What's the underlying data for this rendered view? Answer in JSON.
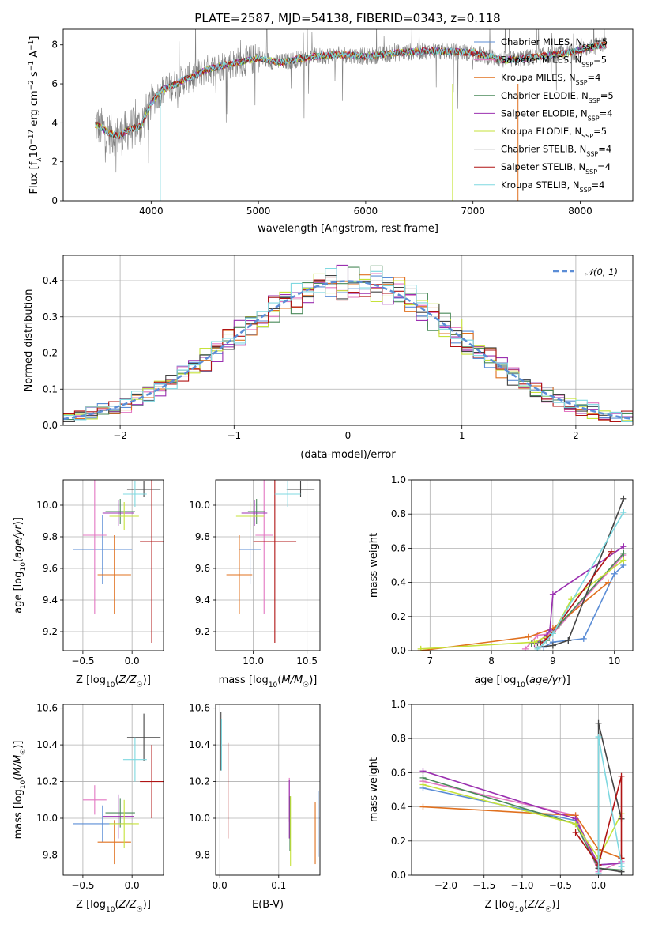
{
  "figure": {
    "title": "PLATE=2587, MJD=54138, FIBERID=0343, z=0.118"
  },
  "colors": {
    "chabrier_miles": "#5b8dd6",
    "salpeter_miles": "#e377c2",
    "kroupa_miles": "#e0701e",
    "chabrier_elodie": "#4a8a5a",
    "salpeter_elodie": "#9b30b0",
    "kroupa_elodie": "#c6e23a",
    "chabrier_stelib": "#444444",
    "salpeter_stelib": "#b01414",
    "kroupa_stelib": "#7fd8e0",
    "data_grey": "#808080",
    "normal_dashed": "#5b8dd6"
  },
  "chart_data": [
    {
      "id": "spectrum",
      "type": "line",
      "title": "PLATE=2587, MJD=54138, FIBERID=0343, z=0.118",
      "xlabel": "wavelength [Angstrom, rest frame]",
      "ylabel": "Flux [fλ10⁻¹⁷ erg cm⁻² s⁻¹ A⁻¹]",
      "xlim": [
        3180,
        8490
      ],
      "ylim": [
        0,
        8.8
      ],
      "xticks": [
        4000,
        5000,
        6000,
        7000,
        8000
      ],
      "yticks": [
        0,
        2,
        4,
        6,
        8
      ],
      "grid": false,
      "legend_position": "top-right",
      "legend": [
        {
          "label": "Chabrier MILES, N",
          "sub": "SSP",
          "suffix": "=5",
          "color_key": "chabrier_miles"
        },
        {
          "label": "Salpeter MILES, N",
          "sub": "SSP",
          "suffix": "=5",
          "color_key": "salpeter_miles"
        },
        {
          "label": "Kroupa MILES, N",
          "sub": "SSP",
          "suffix": "=4",
          "color_key": "kroupa_miles"
        },
        {
          "label": "Chabrier ELODIE, N",
          "sub": "SSP",
          "suffix": "=5",
          "color_key": "chabrier_elodie"
        },
        {
          "label": "Salpeter ELODIE, N",
          "sub": "SSP",
          "suffix": "=4",
          "color_key": "salpeter_elodie"
        },
        {
          "label": "Kroupa ELODIE, N",
          "sub": "SSP",
          "suffix": "=5",
          "color_key": "kroupa_elodie"
        },
        {
          "label": "Chabrier STELIB, N",
          "sub": "SSP",
          "suffix": "=4",
          "color_key": "chabrier_stelib"
        },
        {
          "label": "Salpeter STELIB, N",
          "sub": "SSP",
          "suffix": "=4",
          "color_key": "salpeter_stelib"
        },
        {
          "label": "Kroupa STELIB, N",
          "sub": "SSP",
          "suffix": "=4",
          "color_key": "kroupa_stelib"
        }
      ],
      "continuum": {
        "x": [
          3500,
          3600,
          3700,
          3800,
          3900,
          4000,
          4100,
          4200,
          4300,
          4400,
          4500,
          4700,
          5000,
          5200,
          5500,
          5800,
          6000,
          6300,
          6600,
          7000,
          7300,
          7600,
          7900,
          8200
        ],
        "y": [
          3.9,
          3.5,
          3.3,
          3.7,
          3.8,
          5.0,
          5.7,
          5.9,
          6.2,
          6.4,
          6.7,
          7.0,
          7.3,
          7.1,
          7.4,
          7.5,
          7.4,
          7.6,
          7.7,
          7.6,
          7.2,
          7.4,
          7.6,
          8.0
        ]
      }
    },
    {
      "id": "residuals",
      "type": "histogram",
      "xlabel": "(data-model)/error",
      "ylabel": "Normed distribution",
      "xlim": [
        -2.5,
        2.5
      ],
      "ylim": [
        0,
        0.47
      ],
      "xticks": [
        -2,
        -1,
        0,
        1,
        2
      ],
      "yticks": [
        0.0,
        0.1,
        0.2,
        0.3,
        0.4
      ],
      "grid": true,
      "legend_position": "top-right",
      "legend_label": "𝒩(0, 1)",
      "bin_width": 0.1
    },
    {
      "id": "age_vs_Z",
      "type": "scatter",
      "xlabel": "Z [log10(Z/Z☉)]",
      "ylabel": "age  [log10(age/yr)]",
      "xlim": [
        -0.7,
        0.32
      ],
      "ylim": [
        9.08,
        10.16
      ],
      "xticks": [
        -0.5,
        0.0
      ],
      "yticks": [
        9.2,
        9.4,
        9.6,
        9.8,
        10.0
      ],
      "grid": true,
      "points": [
        {
          "color_key": "chabrier_miles",
          "x": -0.3,
          "xerr": 0.3,
          "y": 9.72,
          "yerr": 0.22
        },
        {
          "color_key": "salpeter_miles",
          "x": -0.38,
          "xerr": 0.12,
          "y": 9.81,
          "yerr": 0.5
        },
        {
          "color_key": "kroupa_miles",
          "x": -0.18,
          "xerr": 0.17,
          "y": 9.56,
          "yerr": 0.25
        },
        {
          "color_key": "chabrier_elodie",
          "x": -0.12,
          "xerr": 0.15,
          "y": 9.96,
          "yerr": 0.08
        },
        {
          "color_key": "salpeter_elodie",
          "x": -0.14,
          "xerr": 0.16,
          "y": 9.95,
          "yerr": 0.08
        },
        {
          "color_key": "kroupa_elodie",
          "x": -0.08,
          "xerr": 0.15,
          "y": 9.93,
          "yerr": 0.09
        },
        {
          "color_key": "chabrier_stelib",
          "x": 0.12,
          "xerr": 0.17,
          "y": 10.1,
          "yerr": 0.05
        },
        {
          "color_key": "salpeter_stelib",
          "x": 0.2,
          "xerr": 0.12,
          "y": 9.77,
          "yerr": 0.64
        },
        {
          "color_key": "kroupa_stelib",
          "x": 0.03,
          "xerr": 0.12,
          "y": 10.07,
          "yerr": 0.08
        }
      ]
    },
    {
      "id": "age_vs_mass",
      "type": "scatter",
      "xlabel": "mass [log10(M/M☉)]",
      "ylabel": "",
      "xlim": [
        9.65,
        10.62
      ],
      "ylim": [
        9.08,
        10.16
      ],
      "xticks": [
        10.0,
        10.5
      ],
      "yticks": [
        9.2,
        9.4,
        9.6,
        9.8,
        10.0
      ],
      "grid": true,
      "points": [
        {
          "color_key": "chabrier_miles",
          "x": 9.97,
          "xerr": 0.1,
          "y": 9.72,
          "yerr": 0.22
        },
        {
          "color_key": "salpeter_miles",
          "x": 10.1,
          "xerr": 0.08,
          "y": 9.81,
          "yerr": 0.5
        },
        {
          "color_key": "kroupa_miles",
          "x": 9.87,
          "xerr": 0.12,
          "y": 9.56,
          "yerr": 0.25
        },
        {
          "color_key": "chabrier_elodie",
          "x": 10.03,
          "xerr": 0.08,
          "y": 9.96,
          "yerr": 0.08
        },
        {
          "color_key": "salpeter_elodie",
          "x": 10.01,
          "xerr": 0.12,
          "y": 9.95,
          "yerr": 0.08
        },
        {
          "color_key": "kroupa_elodie",
          "x": 9.97,
          "xerr": 0.13,
          "y": 9.93,
          "yerr": 0.09
        },
        {
          "color_key": "chabrier_stelib",
          "x": 10.44,
          "xerr": 0.13,
          "y": 10.1,
          "yerr": 0.05
        },
        {
          "color_key": "salpeter_stelib",
          "x": 10.2,
          "xerr": 0.2,
          "y": 9.77,
          "yerr": 0.64
        },
        {
          "color_key": "kroupa_stelib",
          "x": 10.32,
          "xerr": 0.12,
          "y": 10.07,
          "yerr": 0.08
        }
      ]
    },
    {
      "id": "massweight_vs_age",
      "type": "line",
      "xlabel": "age  [log10(age/yr)]",
      "ylabel": "mass weight",
      "xlim": [
        6.7,
        10.3
      ],
      "ylim": [
        0,
        1.0
      ],
      "xticks": [
        7,
        8,
        9,
        10
      ],
      "yticks": [
        0.0,
        0.2,
        0.4,
        0.6,
        0.8,
        1.0
      ],
      "grid": true,
      "series": [
        {
          "color_key": "chabrier_miles",
          "x": [
            8.85,
            9.0,
            9.25,
            9.5,
            10.0,
            10.15
          ],
          "y": [
            0.02,
            0.05,
            0.06,
            0.07,
            0.45,
            0.5
          ]
        },
        {
          "color_key": "salpeter_miles",
          "x": [
            8.55,
            8.75,
            9.0,
            10.0,
            10.15
          ],
          "y": [
            0.01,
            0.09,
            0.1,
            0.5,
            0.56
          ]
        },
        {
          "color_key": "kroupa_miles",
          "x": [
            6.85,
            8.6,
            9.0,
            9.9
          ],
          "y": [
            0.0,
            0.08,
            0.13,
            0.4
          ]
        },
        {
          "color_key": "chabrier_elodie",
          "x": [
            8.65,
            8.9,
            9.1,
            10.15
          ],
          "y": [
            0.04,
            0.06,
            0.15,
            0.57
          ]
        },
        {
          "color_key": "salpeter_elodie",
          "x": [
            8.7,
            8.9,
            8.95,
            9.0,
            10.15
          ],
          "y": [
            0.04,
            0.09,
            0.12,
            0.33,
            0.61
          ]
        },
        {
          "color_key": "kroupa_elodie",
          "x": [
            6.85,
            8.7,
            9.0,
            9.3,
            10.15
          ],
          "y": [
            0.01,
            0.05,
            0.1,
            0.3,
            0.53
          ]
        },
        {
          "color_key": "chabrier_stelib",
          "x": [
            8.75,
            9.0,
            9.25,
            10.15
          ],
          "y": [
            0.02,
            0.03,
            0.06,
            0.89
          ]
        },
        {
          "color_key": "salpeter_stelib",
          "x": [
            8.8,
            8.9,
            9.0,
            9.95
          ],
          "y": [
            0.04,
            0.07,
            0.11,
            0.58
          ]
        },
        {
          "color_key": "kroupa_stelib",
          "x": [
            8.75,
            8.85,
            9.0,
            10.15
          ],
          "y": [
            0.01,
            0.04,
            0.1,
            0.81
          ]
        }
      ]
    },
    {
      "id": "mass_vs_Z",
      "type": "scatter",
      "xlabel": "Z [log10(Z/Z☉)]",
      "ylabel": "mass [log10(M/M☉)]",
      "xlim": [
        -0.7,
        0.32
      ],
      "ylim": [
        9.69,
        10.62
      ],
      "xticks": [
        -0.5,
        0.0
      ],
      "yticks": [
        9.8,
        10.0,
        10.2,
        10.4,
        10.6
      ],
      "grid": true,
      "points": [
        {
          "color_key": "chabrier_miles",
          "x": -0.3,
          "xerr": 0.3,
          "y": 9.97,
          "yerr": 0.1
        },
        {
          "color_key": "salpeter_miles",
          "x": -0.38,
          "xerr": 0.12,
          "y": 10.1,
          "yerr": 0.08
        },
        {
          "color_key": "kroupa_miles",
          "x": -0.18,
          "xerr": 0.17,
          "y": 9.87,
          "yerr": 0.12
        },
        {
          "color_key": "chabrier_elodie",
          "x": -0.12,
          "xerr": 0.15,
          "y": 10.03,
          "yerr": 0.08
        },
        {
          "color_key": "salpeter_elodie",
          "x": -0.14,
          "xerr": 0.16,
          "y": 10.01,
          "yerr": 0.12
        },
        {
          "color_key": "kroupa_elodie",
          "x": -0.08,
          "xerr": 0.15,
          "y": 9.97,
          "yerr": 0.13
        },
        {
          "color_key": "chabrier_stelib",
          "x": 0.12,
          "xerr": 0.17,
          "y": 10.44,
          "yerr": 0.13
        },
        {
          "color_key": "salpeter_stelib",
          "x": 0.2,
          "xerr": 0.12,
          "y": 10.2,
          "yerr": 0.2
        },
        {
          "color_key": "kroupa_stelib",
          "x": 0.03,
          "xerr": 0.12,
          "y": 10.32,
          "yerr": 0.12
        }
      ]
    },
    {
      "id": "mass_vs_ebv",
      "type": "scatter",
      "xlabel": "E(B-V)",
      "ylabel": "",
      "xlim": [
        -0.007,
        0.17
      ],
      "ylim": [
        9.69,
        10.62
      ],
      "xticks": [
        0.0,
        0.1
      ],
      "yticks": [
        9.8,
        10.0,
        10.2,
        10.4,
        10.6
      ],
      "grid": true,
      "points": [
        {
          "color_key": "chabrier_miles",
          "x": 0.167,
          "xerr": 0,
          "y": 9.97,
          "yerr": 0.18
        },
        {
          "color_key": "salpeter_miles",
          "x": 0.118,
          "xerr": 0,
          "y": 10.1,
          "yerr": 0.12
        },
        {
          "color_key": "kroupa_miles",
          "x": 0.162,
          "xerr": 0,
          "y": 9.92,
          "yerr": 0.17
        },
        {
          "color_key": "chabrier_elodie",
          "x": 0.119,
          "xerr": 0,
          "y": 9.97,
          "yerr": 0.15
        },
        {
          "color_key": "salpeter_elodie",
          "x": 0.118,
          "xerr": 0,
          "y": 10.05,
          "yerr": 0.16
        },
        {
          "color_key": "kroupa_elodie",
          "x": 0.12,
          "xerr": 0,
          "y": 9.93,
          "yerr": 0.19
        },
        {
          "color_key": "chabrier_stelib",
          "x": 0.002,
          "xerr": 0,
          "y": 10.42,
          "yerr": 0.16
        },
        {
          "color_key": "salpeter_stelib",
          "x": 0.014,
          "xerr": 0,
          "y": 10.15,
          "yerr": 0.26
        },
        {
          "color_key": "kroupa_stelib",
          "x": 0.003,
          "xerr": 0,
          "y": 10.4,
          "yerr": 0.14
        }
      ]
    },
    {
      "id": "massweight_vs_Z",
      "type": "line",
      "xlabel": "Z [log10(Z/Z☉)]",
      "ylabel": "mass weight",
      "xlim": [
        -2.45,
        0.45
      ],
      "ylim": [
        0,
        1.0
      ],
      "xticks": [
        -2.0,
        -1.5,
        -1.0,
        -0.5,
        0.0
      ],
      "yticks": [
        0.0,
        0.2,
        0.4,
        0.6,
        0.8,
        1.0
      ],
      "grid": true,
      "series": [
        {
          "color_key": "chabrier_miles",
          "x": [
            -2.3,
            -0.3,
            0.0,
            0.3
          ],
          "y": [
            0.51,
            0.32,
            0.06,
            0.07
          ]
        },
        {
          "color_key": "salpeter_miles",
          "x": [
            -2.3,
            -0.3,
            0.0,
            0.3
          ],
          "y": [
            0.55,
            0.35,
            0.02,
            0.08
          ]
        },
        {
          "color_key": "kroupa_miles",
          "x": [
            -2.3,
            -0.3,
            0.0,
            0.3
          ],
          "y": [
            0.4,
            0.35,
            0.15,
            0.1
          ]
        },
        {
          "color_key": "chabrier_elodie",
          "x": [
            -2.3,
            -0.3,
            0.0,
            0.3
          ],
          "y": [
            0.57,
            0.3,
            0.04,
            0.03
          ]
        },
        {
          "color_key": "salpeter_elodie",
          "x": [
            -2.3,
            -0.3,
            0.0,
            0.3
          ],
          "y": [
            0.61,
            0.33,
            0.06,
            0.07
          ]
        },
        {
          "color_key": "kroupa_elodie",
          "x": [
            -2.3,
            -0.3,
            0.0,
            0.3
          ],
          "y": [
            0.53,
            0.3,
            0.1,
            0.36
          ]
        },
        {
          "color_key": "chabrier_stelib",
          "x": [
            0.3,
            0.0,
            0.0,
            0.3
          ],
          "y": [
            0.02,
            0.04,
            0.89,
            0.33
          ]
        },
        {
          "color_key": "salpeter_stelib",
          "x": [
            -0.3,
            0.0,
            0.3,
            0.3
          ],
          "y": [
            0.25,
            0.06,
            0.58,
            0.1
          ]
        },
        {
          "color_key": "kroupa_stelib",
          "x": [
            0.0,
            0.0,
            0.3,
            0.3
          ],
          "y": [
            0.01,
            0.81,
            0.07,
            0.05
          ]
        }
      ]
    }
  ]
}
